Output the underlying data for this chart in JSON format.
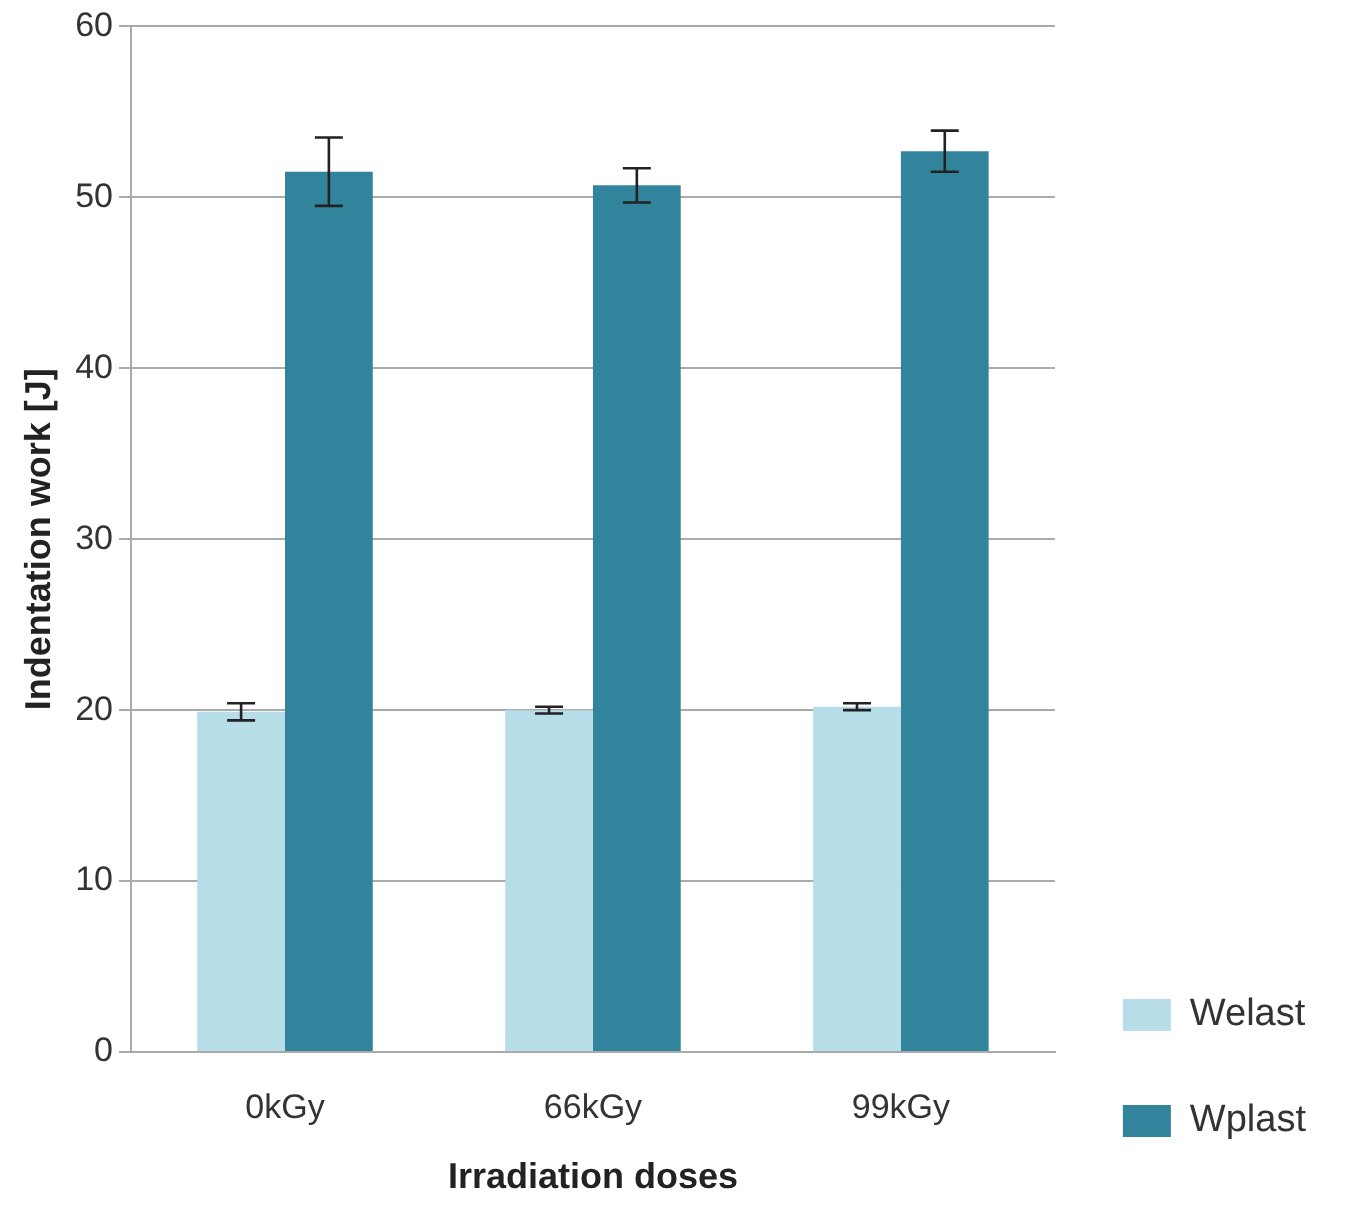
{
  "chart_data": {
    "type": "bar",
    "xlabel": "Irradiation doses",
    "ylabel": "Indentation work [J]",
    "categories": [
      "0kGy",
      "66kGy",
      "99kGy"
    ],
    "series": [
      {
        "name": "Welast",
        "color": "#b7dde8",
        "values": [
          19.9,
          20.0,
          20.2
        ],
        "errors": [
          0.5,
          0.2,
          0.2
        ]
      },
      {
        "name": "Wplast",
        "color": "#31849b",
        "values": [
          51.5,
          50.7,
          52.7
        ],
        "errors": [
          2.0,
          1.0,
          1.2
        ]
      }
    ],
    "ylim": [
      0,
      60
    ],
    "yticks": [
      0,
      10,
      20,
      30,
      40,
      50,
      60
    ],
    "grid": "y",
    "legend": "right"
  }
}
